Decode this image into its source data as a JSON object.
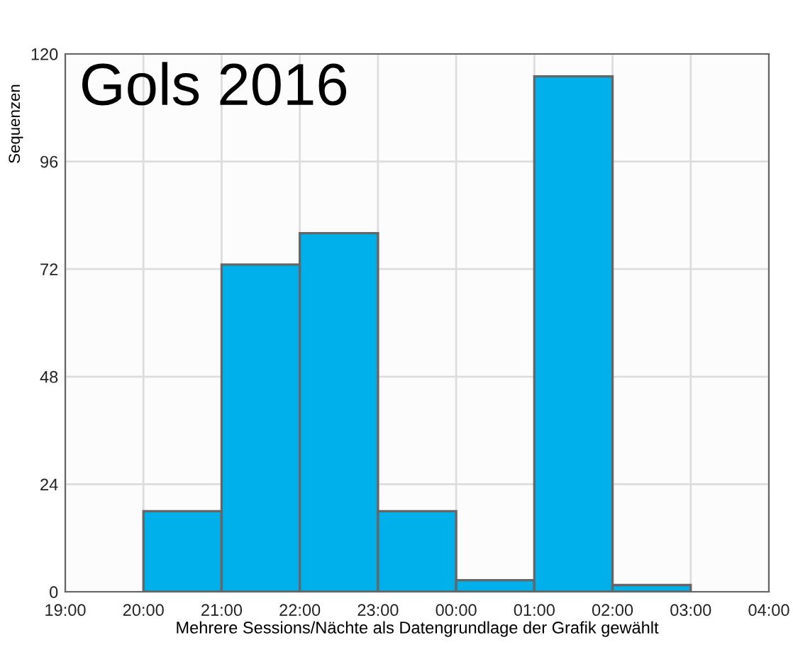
{
  "chart_data": {
    "type": "histogram",
    "title": "Gols 2016",
    "xlabel": "Mehrere Sessions/Nächte als Datengrundlage der Grafik gewählt",
    "ylabel": "Sequenzen",
    "bins": [
      "2016-01-01T20:00",
      "2016-01-01T21:00",
      "2016-01-01T22:00",
      "2016-01-01T23:00",
      "2016-01-02T00:00",
      "2016-01-02T01:00",
      "2016-01-02T02:00",
      "2016-01-02T03:00"
    ],
    "values": [
      18,
      73,
      80,
      18,
      2.6,
      115,
      1.5
    ],
    "color": "#00b0ea",
    "xlim": [
      "2016-01-01T19:00",
      "2016-01-02T04:00"
    ],
    "xticks": [
      {
        "value": "2016-01-01T19:00",
        "label": "19:00"
      },
      {
        "value": "2016-01-01T20:00",
        "label": "20:00"
      },
      {
        "value": "2016-01-01T21:00",
        "label": "21:00"
      },
      {
        "value": "2016-01-01T22:00",
        "label": "22:00"
      },
      {
        "value": "2016-01-01T23:00",
        "label": "23:00"
      },
      {
        "value": "2016-01-02T00:00",
        "label": "00:00"
      },
      {
        "value": "2016-01-02T01:00",
        "label": "01:00"
      },
      {
        "value": "2016-01-02T02:00",
        "label": "02:00"
      },
      {
        "value": "2016-01-02T03:00",
        "label": "03:00"
      },
      {
        "value": "2016-01-02T04:00",
        "label": "04:00"
      }
    ],
    "ylim": [
      0,
      120
    ],
    "yticks": [
      0,
      24,
      48,
      72,
      96,
      120
    ],
    "grid": true,
    "legend": false
  }
}
